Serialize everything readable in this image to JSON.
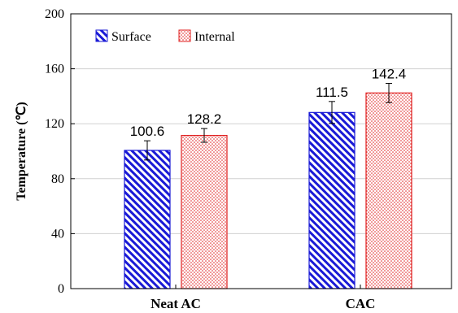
{
  "chart_data": {
    "type": "bar",
    "categories": [
      "Neat AC",
      "CAC"
    ],
    "series": [
      {
        "name": "Surface",
        "values": [
          100.6,
          128.2
        ],
        "errors": [
          7,
          8
        ],
        "color": "#1a1ad6",
        "pattern": "diagonal-hatch"
      },
      {
        "name": "Internal",
        "values": [
          111.5,
          142.4
        ],
        "errors": [
          5,
          7
        ],
        "color": "#e02020",
        "pattern": "dots"
      }
    ],
    "value_labels": [
      "100.6",
      "128.2",
      "111.5",
      "142.4"
    ],
    "ylabel": "Temperature (℃)",
    "ylim": [
      0,
      200
    ],
    "yticks": [
      0,
      40,
      80,
      120,
      160,
      200
    ],
    "grid": true,
    "legend_position": "top-left"
  }
}
